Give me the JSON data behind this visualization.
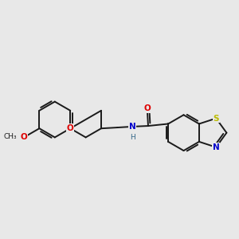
{
  "background_color": "#e8e8e8",
  "bond_color": "#1a1a1a",
  "bond_width": 1.4,
  "atom_colors": {
    "O": "#dd0000",
    "N": "#0000cc",
    "S": "#bbbb00",
    "H": "#336688"
  },
  "figsize": [
    3.0,
    3.0
  ],
  "dpi": 100
}
